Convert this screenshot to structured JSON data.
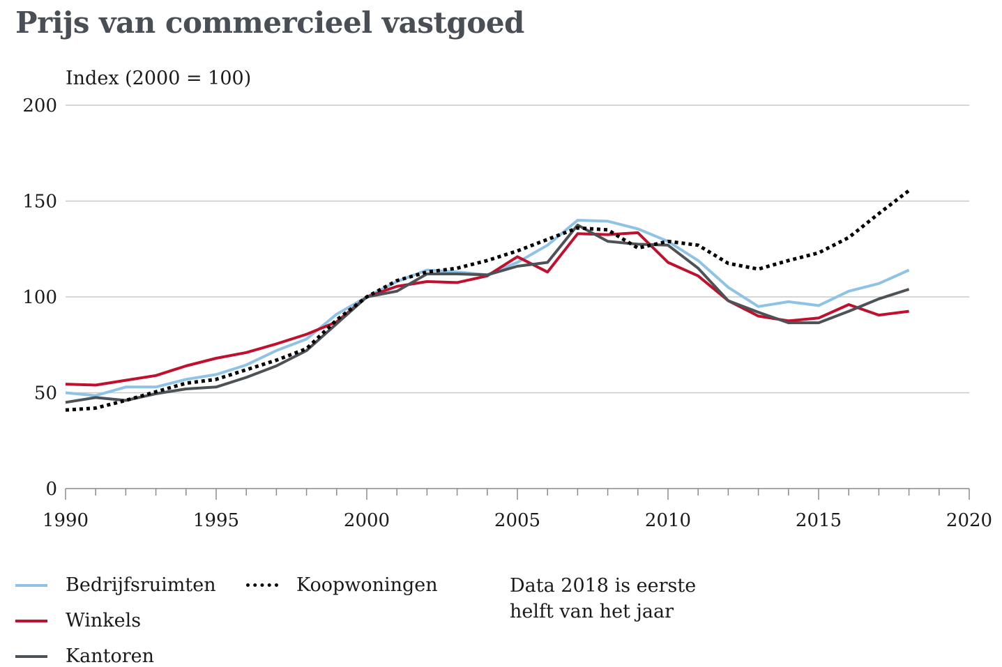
{
  "chart_data": {
    "type": "line",
    "title": "Prijs van commercieel vastgoed",
    "ylabel": "Index (2000 = 100)",
    "xlabel": "",
    "xlim": [
      1990,
      2020
    ],
    "ylim": [
      0,
      200
    ],
    "xticks_major": [
      1990,
      1995,
      2000,
      2005,
      2010,
      2015,
      2020
    ],
    "yticks": [
      0,
      50,
      100,
      150,
      200
    ],
    "grid": "horizontal",
    "legend_position": "bottom",
    "x": [
      1990,
      1991,
      1992,
      1993,
      1994,
      1995,
      1996,
      1997,
      1998,
      1999,
      2000,
      2001,
      2002,
      2003,
      2004,
      2005,
      2006,
      2007,
      2008,
      2009,
      2010,
      2011,
      2012,
      2013,
      2014,
      2015,
      2016,
      2017,
      2018
    ],
    "series": [
      {
        "name": "Bedrijfsruimten",
        "color": "#8ec3e6",
        "style": "solid",
        "values": [
          50,
          48.5,
          53,
          53,
          57,
          59.5,
          64.5,
          72,
          78,
          91,
          100,
          108,
          114,
          113,
          111.5,
          118,
          127,
          140,
          139.5,
          135.5,
          129,
          119,
          105,
          95,
          97.5,
          95.5,
          103,
          107,
          114
        ]
      },
      {
        "name": "Winkels",
        "color": "#c0102e",
        "style": "solid",
        "values": [
          54.5,
          54,
          56.5,
          59,
          64,
          68,
          71,
          75.5,
          80.5,
          87,
          100,
          105.5,
          108,
          107.5,
          111,
          121,
          113,
          133,
          132.5,
          133.5,
          118,
          111,
          98,
          90,
          87.5,
          89,
          96,
          90.5,
          92.5
        ]
      },
      {
        "name": "Kantoren",
        "color": "#4d5257",
        "style": "solid",
        "values": [
          45,
          47.5,
          46,
          49.5,
          52,
          53,
          58,
          64,
          72,
          86,
          100,
          103,
          112,
          112,
          111.5,
          116,
          118,
          137.5,
          129,
          127.5,
          127,
          115,
          98,
          92,
          86.5,
          86.5,
          92.5,
          99,
          104
        ]
      },
      {
        "name": "Koopwoningen",
        "color": "#000000",
        "style": "dotted",
        "values": [
          41,
          42,
          46,
          50.5,
          55,
          57,
          62,
          67,
          73,
          88,
          100,
          108.5,
          113,
          115,
          119,
          124,
          130,
          136,
          135,
          125.5,
          129,
          127,
          117.5,
          114.5,
          119,
          123,
          131,
          143.5,
          155.5
        ]
      }
    ],
    "annotations": [
      "Data 2018 is eerste helft van het jaar"
    ]
  },
  "legend": [
    {
      "label": "Bedrijfsruimten"
    },
    {
      "label": "Winkels"
    },
    {
      "label": "Kantoren"
    },
    {
      "label": "Koopwoningen"
    }
  ],
  "note": {
    "line1": "Data 2018 is eerste",
    "line2": "helft van het jaar"
  }
}
